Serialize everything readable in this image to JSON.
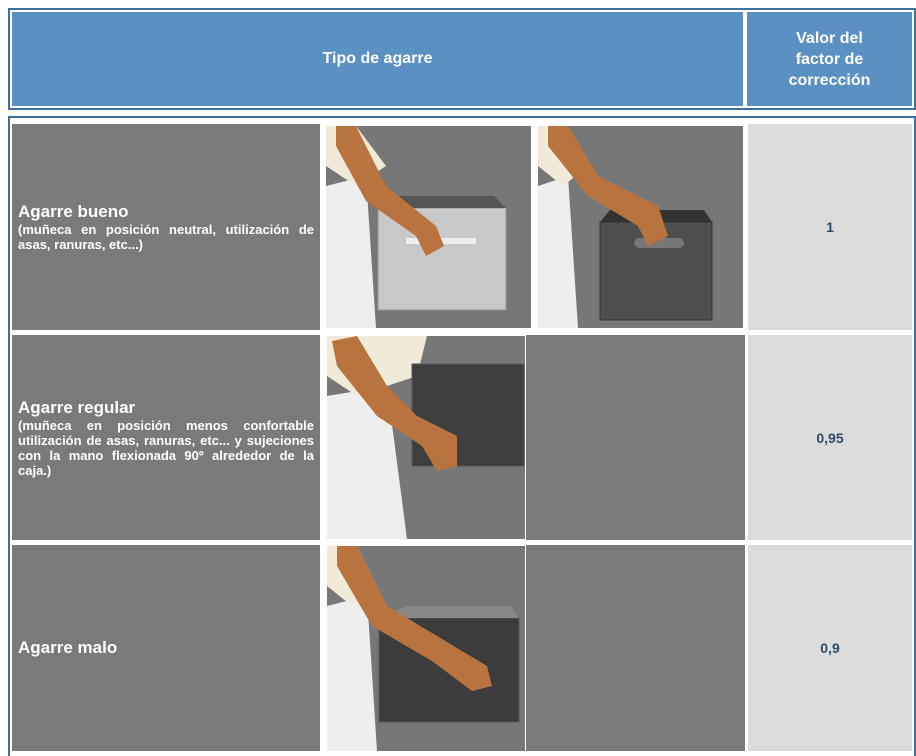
{
  "header": {
    "col1": "Tipo de agarre",
    "col2": [
      "Valor del",
      "factor de",
      "corrección"
    ]
  },
  "rows": [
    {
      "title": "Agarre bueno",
      "description": "(muñeca en posición neutral, utilización de asas, ranuras, etc...)",
      "value": "1"
    },
    {
      "title": "Agarre regular",
      "description": "(muñeca en posición menos confortable utilización de asas, ranuras, etc... y sujeciones con la mano flexionada 90º alrededor de la caja.)",
      "value": "0,95"
    },
    {
      "title": "Agarre malo",
      "value": "0,9"
    }
  ]
}
